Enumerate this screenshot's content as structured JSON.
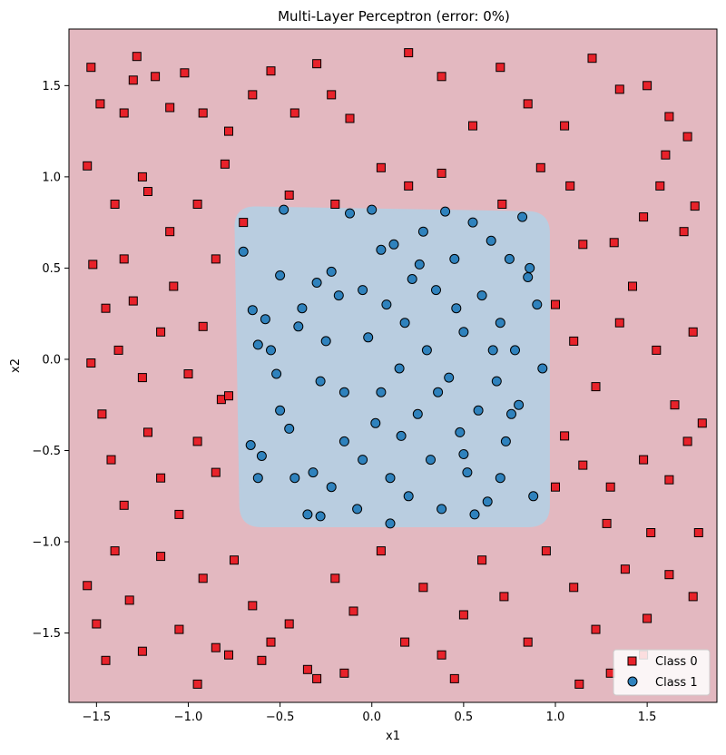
{
  "chart_data": {
    "type": "scatter",
    "title": "Multi-Layer Perceptron (error: 0%)",
    "xlabel": "x1",
    "ylabel": "x2",
    "xlim": [
      -1.65,
      1.88
    ],
    "ylim": [
      -1.88,
      1.81
    ],
    "x_ticks": [
      -1.5,
      -1.0,
      -0.5,
      0.0,
      0.5,
      1.0,
      1.5
    ],
    "x_tick_labels": [
      "−1.5",
      "−1.0",
      "−0.5",
      "0.0",
      "0.5",
      "1.0",
      "1.5"
    ],
    "y_ticks": [
      1.5,
      1.0,
      0.5,
      0.0,
      -0.5,
      -1.0,
      -1.5
    ],
    "y_tick_labels": [
      "1.5",
      "1.0",
      "0.5",
      "0.0",
      "−0.5",
      "−1.0",
      "−1.5"
    ],
    "grid": false,
    "legend_position": "bottom-right",
    "colors": {
      "class0_region": "#e3b8c0",
      "class1_region": "#b9cde0",
      "class0_marker": "#e8222a",
      "class1_marker": "#2f82bd",
      "marker_edge": "#000000"
    },
    "decision_region_class1": {
      "description_corners": [
        [
          -0.75,
          0.84
        ],
        [
          0.97,
          0.81
        ],
        [
          0.97,
          -0.92
        ],
        [
          -0.72,
          -0.92
        ]
      ]
    },
    "series": [
      {
        "name": "Class 0",
        "marker": "square",
        "points": [
          [
            -1.53,
            1.6
          ],
          [
            -1.48,
            1.4
          ],
          [
            -1.35,
            1.35
          ],
          [
            -1.3,
            1.53
          ],
          [
            -1.28,
            1.66
          ],
          [
            -1.25,
            1.0
          ],
          [
            -1.18,
            1.55
          ],
          [
            -1.1,
            1.38
          ],
          [
            -1.02,
            1.57
          ],
          [
            -0.92,
            1.35
          ],
          [
            -0.78,
            1.25
          ],
          [
            -0.65,
            1.45
          ],
          [
            -0.55,
            1.58
          ],
          [
            -0.42,
            1.35
          ],
          [
            -0.3,
            1.62
          ],
          [
            -0.22,
            1.45
          ],
          [
            -0.12,
            1.32
          ],
          [
            0.05,
            1.05
          ],
          [
            0.2,
            1.68
          ],
          [
            0.38,
            1.55
          ],
          [
            0.55,
            1.28
          ],
          [
            0.7,
            1.6
          ],
          [
            0.85,
            1.4
          ],
          [
            1.05,
            1.28
          ],
          [
            1.2,
            1.65
          ],
          [
            1.35,
            1.48
          ],
          [
            1.5,
            1.5
          ],
          [
            1.62,
            1.33
          ],
          [
            1.72,
            1.22
          ],
          [
            1.6,
            1.12
          ],
          [
            -1.55,
            1.06
          ],
          [
            -1.4,
            0.85
          ],
          [
            -1.35,
            0.55
          ],
          [
            -1.22,
            0.92
          ],
          [
            -1.1,
            0.7
          ],
          [
            -0.95,
            0.85
          ],
          [
            -0.85,
            0.55
          ],
          [
            -0.8,
            1.07
          ],
          [
            -0.7,
            0.75
          ],
          [
            -0.45,
            0.9
          ],
          [
            -0.2,
            0.85
          ],
          [
            0.2,
            0.95
          ],
          [
            0.38,
            1.02
          ],
          [
            0.71,
            0.85
          ],
          [
            0.92,
            1.05
          ],
          [
            1.08,
            0.95
          ],
          [
            1.15,
            0.63
          ],
          [
            1.32,
            0.64
          ],
          [
            1.48,
            0.78
          ],
          [
            1.57,
            0.95
          ],
          [
            1.7,
            0.7
          ],
          [
            1.76,
            0.84
          ],
          [
            -1.52,
            0.52
          ],
          [
            -1.45,
            0.28
          ],
          [
            -1.38,
            0.05
          ],
          [
            -1.3,
            0.32
          ],
          [
            -1.25,
            -0.1
          ],
          [
            -1.15,
            0.15
          ],
          [
            -1.08,
            0.4
          ],
          [
            -1.0,
            -0.08
          ],
          [
            -0.92,
            0.18
          ],
          [
            -0.82,
            -0.22
          ],
          [
            -1.53,
            -0.02
          ],
          [
            -1.47,
            -0.3
          ],
          [
            -1.42,
            -0.55
          ],
          [
            -1.35,
            -0.8
          ],
          [
            -1.22,
            -0.4
          ],
          [
            -1.15,
            -0.65
          ],
          [
            -1.05,
            -0.85
          ],
          [
            -0.95,
            -0.45
          ],
          [
            -0.85,
            -0.62
          ],
          [
            -0.78,
            -0.2
          ],
          [
            1.0,
            0.3
          ],
          [
            1.1,
            0.1
          ],
          [
            1.22,
            -0.15
          ],
          [
            1.35,
            0.2
          ],
          [
            1.42,
            0.4
          ],
          [
            1.55,
            0.05
          ],
          [
            1.65,
            -0.25
          ],
          [
            1.75,
            0.15
          ],
          [
            1.8,
            -0.35
          ],
          [
            1.05,
            -0.42
          ],
          [
            1.15,
            -0.58
          ],
          [
            1.3,
            -0.7
          ],
          [
            1.48,
            -0.55
          ],
          [
            1.62,
            -0.66
          ],
          [
            1.72,
            -0.45
          ],
          [
            1.0,
            -0.7
          ],
          [
            -1.55,
            -1.24
          ],
          [
            -1.5,
            -1.45
          ],
          [
            -1.45,
            -1.65
          ],
          [
            -1.4,
            -1.05
          ],
          [
            -1.32,
            -1.32
          ],
          [
            -1.25,
            -1.6
          ],
          [
            -1.15,
            -1.08
          ],
          [
            -1.05,
            -1.48
          ],
          [
            -0.92,
            -1.2
          ],
          [
            -0.85,
            -1.58
          ],
          [
            -0.75,
            -1.1
          ],
          [
            -0.65,
            -1.35
          ],
          [
            -0.55,
            -1.55
          ],
          [
            -0.45,
            -1.45
          ],
          [
            -0.35,
            -1.7
          ],
          [
            -0.2,
            -1.2
          ],
          [
            -0.1,
            -1.38
          ],
          [
            0.05,
            -1.05
          ],
          [
            0.18,
            -1.55
          ],
          [
            0.28,
            -1.25
          ],
          [
            0.38,
            -1.62
          ],
          [
            0.5,
            -1.4
          ],
          [
            0.6,
            -1.1
          ],
          [
            0.72,
            -1.3
          ],
          [
            0.85,
            -1.55
          ],
          [
            0.95,
            -1.05
          ],
          [
            1.1,
            -1.25
          ],
          [
            1.22,
            -1.48
          ],
          [
            1.38,
            -1.15
          ],
          [
            1.5,
            -1.42
          ],
          [
            1.62,
            -1.18
          ],
          [
            1.75,
            -1.3
          ],
          [
            1.78,
            -0.95
          ],
          [
            1.52,
            -0.95
          ],
          [
            1.28,
            -0.9
          ],
          [
            1.13,
            -1.78
          ],
          [
            1.3,
            -1.72
          ],
          [
            1.48,
            -1.62
          ],
          [
            -0.95,
            -1.78
          ],
          [
            -0.78,
            -1.62
          ],
          [
            -0.6,
            -1.65
          ],
          [
            -0.3,
            -1.75
          ],
          [
            -0.15,
            -1.72
          ],
          [
            0.45,
            -1.75
          ]
        ]
      },
      {
        "name": "Class 1",
        "marker": "circle",
        "points": [
          [
            -0.7,
            0.59
          ],
          [
            -0.65,
            0.27
          ],
          [
            -0.62,
            0.08
          ],
          [
            -0.6,
            -0.53
          ],
          [
            -0.55,
            0.05
          ],
          [
            -0.5,
            -0.28
          ],
          [
            -0.48,
            0.82
          ],
          [
            -0.42,
            -0.65
          ],
          [
            -0.38,
            0.28
          ],
          [
            -0.35,
            -0.85
          ],
          [
            -0.3,
            0.42
          ],
          [
            -0.28,
            -0.12
          ],
          [
            -0.25,
            0.1
          ],
          [
            -0.22,
            -0.7
          ],
          [
            -0.18,
            0.35
          ],
          [
            -0.15,
            -0.45
          ],
          [
            -0.12,
            0.8
          ],
          [
            -0.08,
            -0.82
          ],
          [
            -0.05,
            0.38
          ],
          [
            -0.02,
            0.12
          ],
          [
            0.0,
            0.82
          ],
          [
            0.02,
            -0.35
          ],
          [
            0.05,
            -0.18
          ],
          [
            0.08,
            0.3
          ],
          [
            0.1,
            -0.65
          ],
          [
            0.12,
            0.63
          ],
          [
            0.15,
            -0.05
          ],
          [
            0.18,
            0.2
          ],
          [
            0.2,
            -0.75
          ],
          [
            0.22,
            0.44
          ],
          [
            0.25,
            -0.3
          ],
          [
            0.28,
            0.7
          ],
          [
            0.3,
            0.05
          ],
          [
            0.32,
            -0.55
          ],
          [
            0.35,
            0.38
          ],
          [
            0.38,
            -0.82
          ],
          [
            0.4,
            0.81
          ],
          [
            0.42,
            -0.1
          ],
          [
            0.45,
            0.55
          ],
          [
            0.48,
            -0.4
          ],
          [
            0.5,
            0.15
          ],
          [
            0.52,
            -0.62
          ],
          [
            0.55,
            0.75
          ],
          [
            0.58,
            -0.28
          ],
          [
            0.6,
            0.35
          ],
          [
            0.63,
            -0.78
          ],
          [
            0.65,
            0.65
          ],
          [
            0.68,
            -0.12
          ],
          [
            0.7,
            0.2
          ],
          [
            0.73,
            -0.45
          ],
          [
            0.75,
            0.55
          ],
          [
            0.78,
            0.05
          ],
          [
            0.8,
            -0.25
          ],
          [
            0.82,
            0.78
          ],
          [
            0.85,
            0.45
          ],
          [
            0.88,
            -0.75
          ],
          [
            0.9,
            0.3
          ],
          [
            0.93,
            -0.05
          ],
          [
            -0.66,
            -0.47
          ],
          [
            -0.58,
            0.22
          ],
          [
            -0.52,
            -0.08
          ],
          [
            -0.45,
            -0.38
          ],
          [
            -0.4,
            0.18
          ],
          [
            -0.32,
            -0.62
          ],
          [
            -0.22,
            0.48
          ],
          [
            -0.15,
            -0.18
          ],
          [
            -0.05,
            -0.55
          ],
          [
            0.05,
            0.6
          ],
          [
            0.16,
            -0.42
          ],
          [
            0.26,
            0.52
          ],
          [
            0.36,
            -0.18
          ],
          [
            0.46,
            0.28
          ],
          [
            0.56,
            -0.85
          ],
          [
            0.66,
            0.05
          ],
          [
            0.76,
            -0.3
          ],
          [
            0.86,
            0.5
          ],
          [
            -0.62,
            -0.65
          ],
          [
            -0.5,
            0.46
          ],
          [
            0.1,
            -0.9
          ],
          [
            0.5,
            -0.52
          ],
          [
            -0.28,
            -0.86
          ],
          [
            0.7,
            -0.65
          ]
        ]
      }
    ]
  }
}
